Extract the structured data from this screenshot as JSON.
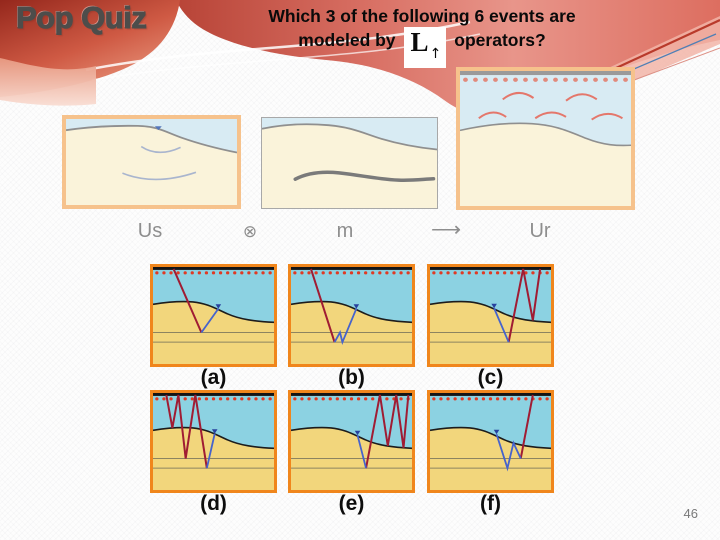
{
  "header": {
    "title": "Pop Quiz",
    "question_line1": "Which 3 of the following 6 events are",
    "question_line2_prefix": "modeled by",
    "operator_symbol": "L",
    "operator_subscript": "↑",
    "question_line2_suffix": "operators?"
  },
  "equation_row": {
    "us_label": "Us",
    "convolution_symbol": "⊗",
    "m_label": "m",
    "arrow_symbol": "⟶",
    "ur_label": "Ur"
  },
  "page_number": "46",
  "colors": {
    "border_light_orange": "#f6c28c",
    "border_strong_orange": "#f0861c",
    "sky_light": "#d8ebf3",
    "ground_light": "#faf3da",
    "sky_strong": "#8cd2e2",
    "ground_strong": "#f2d67c",
    "surface_line": "#1c1c1c",
    "layer_line": "#8d8460",
    "top_bar": "#141414",
    "receiver_dot": "#e03a24",
    "ur_dot": "#e18a7c",
    "ur_arc": "#e4776b",
    "ray_red": "#a01c33",
    "ray_blue": "#4663cc",
    "marker_blue": "#27419e"
  },
  "event_panels": [
    {
      "id": "a",
      "label": "(a)",
      "red": [
        [
          17,
          2
        ],
        [
          40,
          67.5
        ]
      ],
      "blue": [
        [
          40,
          67.5
        ],
        [
          54,
          43
        ]
      ],
      "triangle": [
        54,
        43
      ]
    },
    {
      "id": "b",
      "label": "(b)",
      "red": [
        [
          16.5,
          2
        ],
        [
          36,
          77.5
        ]
      ],
      "blue": [
        [
          36,
          77.5
        ],
        [
          40.5,
          67.5
        ],
        [
          42.5,
          77.5
        ],
        [
          54,
          43
        ]
      ],
      "triangle": [
        54,
        43
      ]
    },
    {
      "id": "c",
      "label": "(c)",
      "red": [
        [
          65,
          77.5
        ],
        [
          77,
          2
        ],
        [
          85,
          55
        ],
        [
          91,
          2
        ]
      ],
      "blue": [
        [
          53,
          42.5
        ],
        [
          65,
          77.5
        ]
      ],
      "triangle": [
        53,
        42.5
      ]
    },
    {
      "id": "d",
      "label": "(d)",
      "red": [
        [
          11,
          2
        ],
        [
          16,
          36
        ],
        [
          21,
          2
        ],
        [
          27,
          67.5
        ],
        [
          35,
          2
        ],
        [
          44.5,
          77.5
        ]
      ],
      "blue": [
        [
          44.5,
          77.5
        ],
        [
          51,
          42
        ]
      ],
      "triangle": [
        51,
        42
      ]
    },
    {
      "id": "e",
      "label": "(e)",
      "red": [
        [
          62,
          77.5
        ],
        [
          73.5,
          2
        ],
        [
          80,
          54.5
        ],
        [
          87,
          2
        ],
        [
          93,
          56.5
        ],
        [
          97,
          2
        ]
      ],
      "blue": [
        [
          55,
          43.5
        ],
        [
          62,
          77.5
        ]
      ],
      "triangle": [
        55,
        43.5
      ]
    },
    {
      "id": "f",
      "label": "(f)",
      "red": [
        [
          85,
          2
        ],
        [
          75,
          67.5
        ]
      ],
      "blue": [
        [
          75,
          67.5
        ],
        [
          69,
          51.5
        ],
        [
          64,
          77.5
        ],
        [
          55,
          42.5
        ]
      ],
      "triangle": [
        55,
        42.5
      ]
    }
  ]
}
